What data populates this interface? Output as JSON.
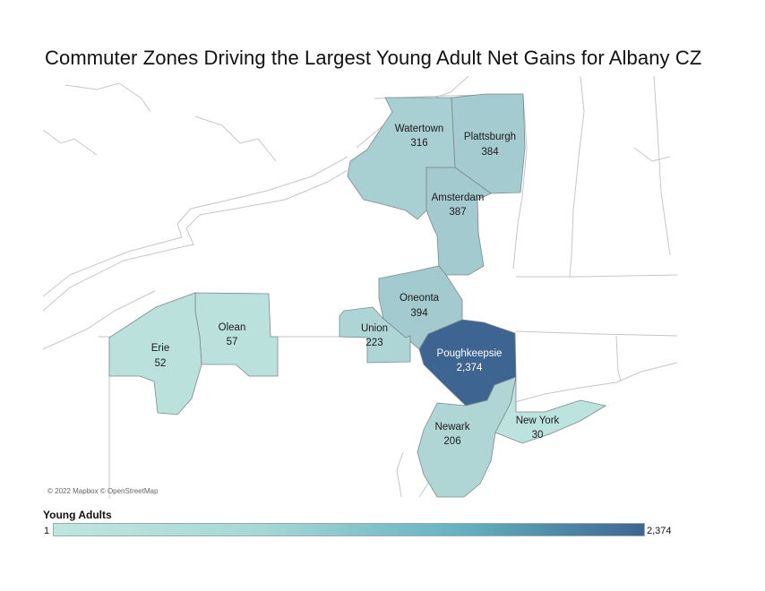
{
  "title": "Commuter Zones Driving the Largest Young Adult Net Gains for Albany CZ",
  "attribution": "© 2022 Mapbox © OpenStreetMap",
  "legend": {
    "title": "Young Adults",
    "min_label": "1",
    "max_label": "2,374",
    "min_value": 1,
    "max_value": 2374,
    "color_low": "#bfe6df",
    "color_high": "#3e6592"
  },
  "zones": [
    {
      "key": "watertown",
      "name": "Watertown",
      "value": 316,
      "value_label": "316"
    },
    {
      "key": "plattsburgh",
      "name": "Plattsburgh",
      "value": 384,
      "value_label": "384"
    },
    {
      "key": "amsterdam",
      "name": "Amsterdam",
      "value": 387,
      "value_label": "387"
    },
    {
      "key": "oneonta",
      "name": "Oneonta",
      "value": 394,
      "value_label": "394"
    },
    {
      "key": "union",
      "name": "Union",
      "value": 223,
      "value_label": "223"
    },
    {
      "key": "olean",
      "name": "Olean",
      "value": 57,
      "value_label": "57"
    },
    {
      "key": "erie",
      "name": "Erie",
      "value": 52,
      "value_label": "52"
    },
    {
      "key": "poughkeepsie",
      "name": "Poughkeepsie",
      "value": 2374,
      "value_label": "2,374"
    },
    {
      "key": "newark",
      "name": "Newark",
      "value": 206,
      "value_label": "206"
    },
    {
      "key": "new-york",
      "name": "New York",
      "value": 30,
      "value_label": "30"
    }
  ]
}
